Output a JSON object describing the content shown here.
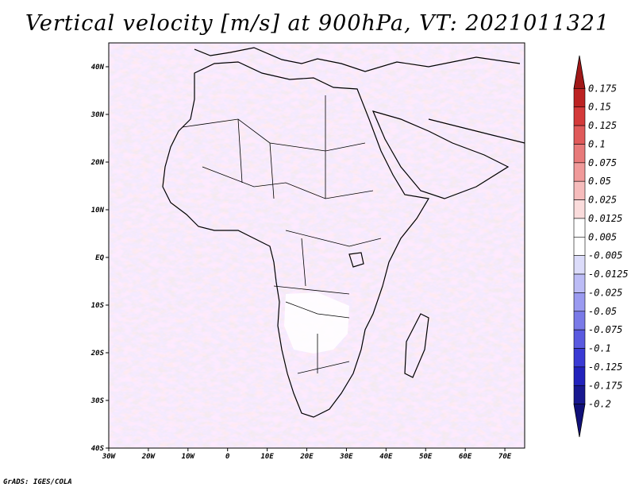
{
  "title": "Vertical velocity [m/s] at 900hPa, VT: 2021011321",
  "credit": "GrADS: IGES/COLA",
  "map": {
    "region": "Africa and surrounding seas",
    "lon_range": [
      -30,
      75
    ],
    "lat_range": [
      -40,
      45
    ],
    "lon_ticks": [
      "30W",
      "20W",
      "10W",
      "0",
      "10E",
      "20E",
      "30E",
      "40E",
      "50E",
      "60E",
      "70E"
    ],
    "lat_ticks": [
      "40S",
      "30S",
      "20S",
      "10S",
      "EQ",
      "10N",
      "20N",
      "30N",
      "40N"
    ]
  },
  "colorbar": {
    "labels": [
      "0.175",
      "0.15",
      "0.125",
      "0.1",
      "0.075",
      "0.05",
      "0.025",
      "0.0125",
      "0.005",
      "-0.005",
      "-0.0125",
      "-0.025",
      "-0.05",
      "-0.075",
      "-0.1",
      "-0.125",
      "-0.175",
      "-0.2"
    ],
    "colors": [
      "#a01818",
      "#bc2222",
      "#d43a3a",
      "#e05a5a",
      "#e87a7a",
      "#f09a9a",
      "#f6bcbc",
      "#fadcdc",
      "#ffffff",
      "#ffffff",
      "#dcdcfa",
      "#bcbcf6",
      "#9a9af0",
      "#7a7ae8",
      "#5a5ae0",
      "#3a3ad4",
      "#2222bc",
      "#181890",
      "#101078"
    ]
  }
}
